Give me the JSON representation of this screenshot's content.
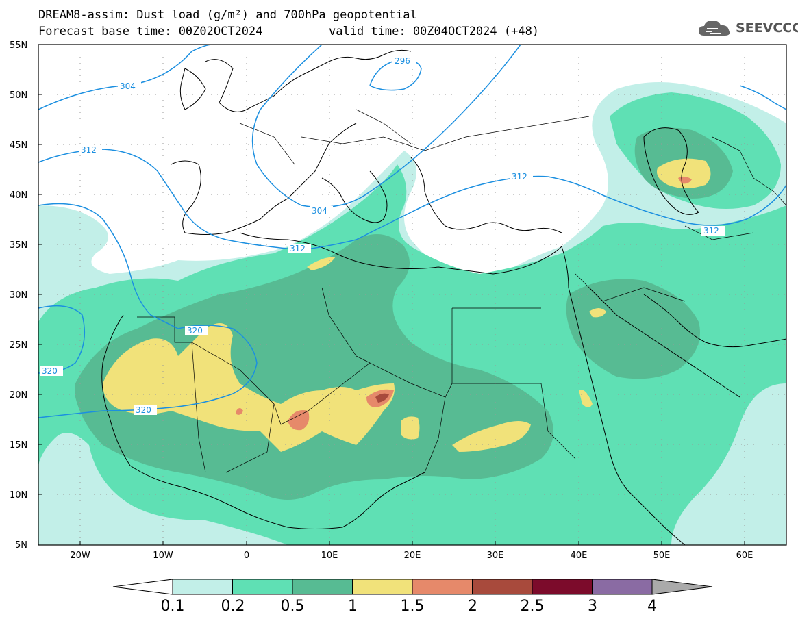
{
  "header": {
    "title": "DREAM8-assim: Dust load (g/m²) and 700hPa geopotential",
    "base_time": "Forecast base time: 00Z02OCT2024",
    "valid_time": "valid time: 00Z04OCT2024 (+48)"
  },
  "logo": {
    "text": "SEEVCCC",
    "icon": "cloud-icon"
  },
  "map": {
    "lat_labels": [
      "55N",
      "50N",
      "45N",
      "40N",
      "35N",
      "30N",
      "25N",
      "20N",
      "15N",
      "10N",
      "5N"
    ],
    "lon_labels": [
      "20W",
      "10W",
      "0",
      "10E",
      "20E",
      "30E",
      "40E",
      "50E",
      "60E"
    ],
    "contour_labels": [
      "296",
      "304",
      "312",
      "304",
      "312",
      "312",
      "312",
      "320",
      "320",
      "320"
    ],
    "contour_color": "#1b8fe0"
  },
  "colorbar": {
    "ticks": [
      "0.1",
      "0.2",
      "0.5",
      "1",
      "1.5",
      "2",
      "2.5",
      "3",
      "4"
    ],
    "colors": [
      "#c2efe8",
      "#5fe0b4",
      "#57bb93",
      "#f1e27a",
      "#e6896a",
      "#a84a3c",
      "#7c0b2b",
      "#8a6ba3"
    ],
    "over_color": "#aaaaaa"
  }
}
